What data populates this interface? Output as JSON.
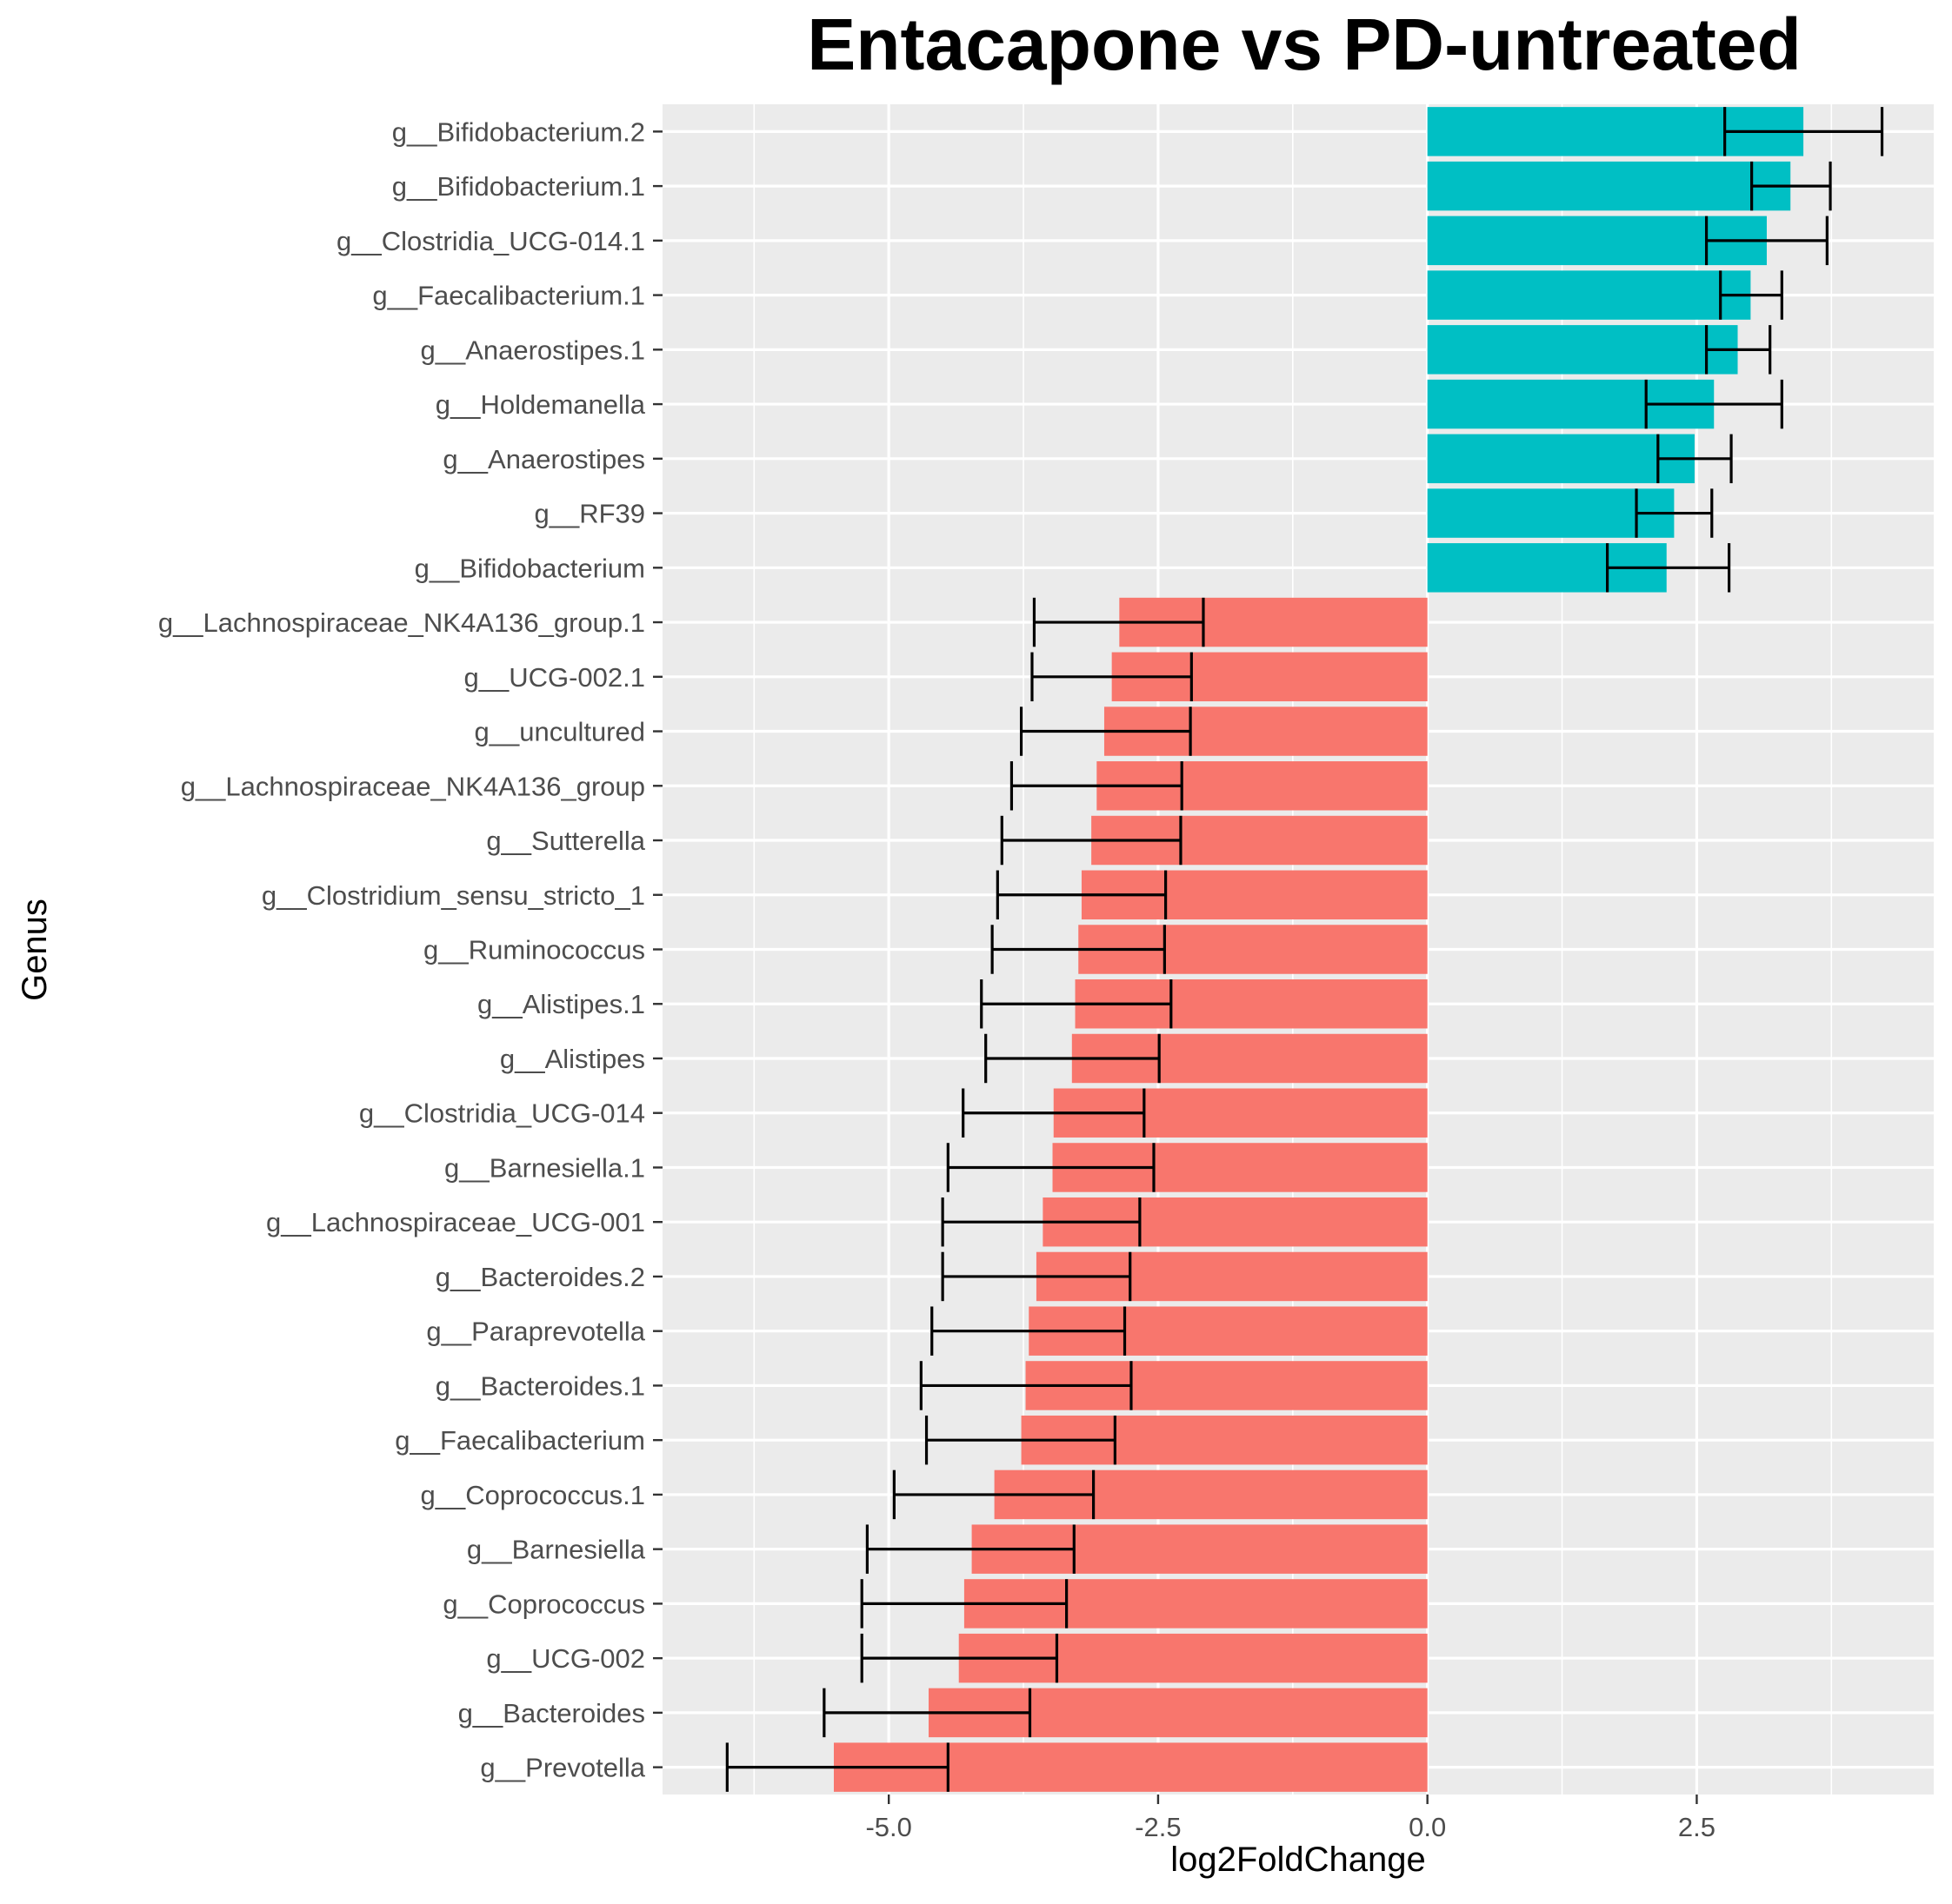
{
  "chart_data": {
    "type": "bar",
    "orientation": "horizontal",
    "title": "Entacapone vs PD-untreated",
    "xlabel": "log2FoldChange",
    "ylabel": "Genus",
    "xlim": [
      -7.1,
      4.7
    ],
    "x_ticks": [
      -5.0,
      -2.5,
      0.0,
      2.5
    ],
    "x_tick_labels": [
      "-5.0",
      "-2.5",
      "0.0",
      "2.5"
    ],
    "grid": true,
    "legend": "none",
    "colors": {
      "positive": "#00BFC4",
      "negative": "#F8766D",
      "panel": "#EBEBEB",
      "grid": "#FFFFFF",
      "errorbar": "#000000"
    },
    "categories": [
      "g__Bifidobacterium.2",
      "g__Bifidobacterium.1",
      "g__Clostridia_UCG-014.1",
      "g__Faecalibacterium.1",
      "g__Anaerostipes.1",
      "g__Holdemanella",
      "g__Anaerostipes",
      "g__RF39",
      "g__Bifidobacterium",
      "g__Lachnospiraceae_NK4A136_group.1",
      "g__UCG-002.1",
      "g__uncultured",
      "g__Lachnospiraceae_NK4A136_group",
      "g__Sutterella",
      "g__Clostridium_sensu_stricto_1",
      "g__Ruminococcus",
      "g__Alistipes.1",
      "g__Alistipes",
      "g__Clostridia_UCG-014",
      "g__Barnesiella.1",
      "g__Lachnospiraceae_UCG-001",
      "g__Bacteroides.2",
      "g__Paraprevotella",
      "g__Bacteroides.1",
      "g__Faecalibacterium",
      "g__Coprococcus.1",
      "g__Barnesiella",
      "g__Coprococcus",
      "g__UCG-002",
      "g__Bacteroides",
      "g__Prevotella"
    ],
    "values": [
      3.49,
      3.37,
      3.15,
      3.0,
      2.88,
      2.66,
      2.48,
      2.29,
      2.22,
      -2.86,
      -2.93,
      -3.0,
      -3.07,
      -3.12,
      -3.21,
      -3.24,
      -3.27,
      -3.3,
      -3.47,
      -3.48,
      -3.57,
      -3.63,
      -3.7,
      -3.73,
      -3.77,
      -4.02,
      -4.23,
      -4.3,
      -4.35,
      -4.63,
      -5.51
    ],
    "error_low": [
      2.76,
      3.01,
      2.59,
      2.72,
      2.59,
      2.03,
      2.14,
      1.94,
      1.67,
      -3.65,
      -3.67,
      -3.77,
      -3.86,
      -3.95,
      -3.99,
      -4.04,
      -4.14,
      -4.1,
      -4.31,
      -4.45,
      -4.5,
      -4.5,
      -4.6,
      -4.7,
      -4.65,
      -4.95,
      -5.2,
      -5.25,
      -5.25,
      -5.6,
      -6.5
    ],
    "error_high": [
      4.22,
      3.74,
      3.71,
      3.29,
      3.18,
      3.29,
      2.82,
      2.64,
      2.8,
      -2.08,
      -2.19,
      -2.2,
      -2.28,
      -2.29,
      -2.43,
      -2.44,
      -2.38,
      -2.49,
      -2.63,
      -2.54,
      -2.67,
      -2.76,
      -2.81,
      -2.75,
      -2.9,
      -3.1,
      -3.28,
      -3.35,
      -3.44,
      -3.69,
      -4.45
    ]
  }
}
